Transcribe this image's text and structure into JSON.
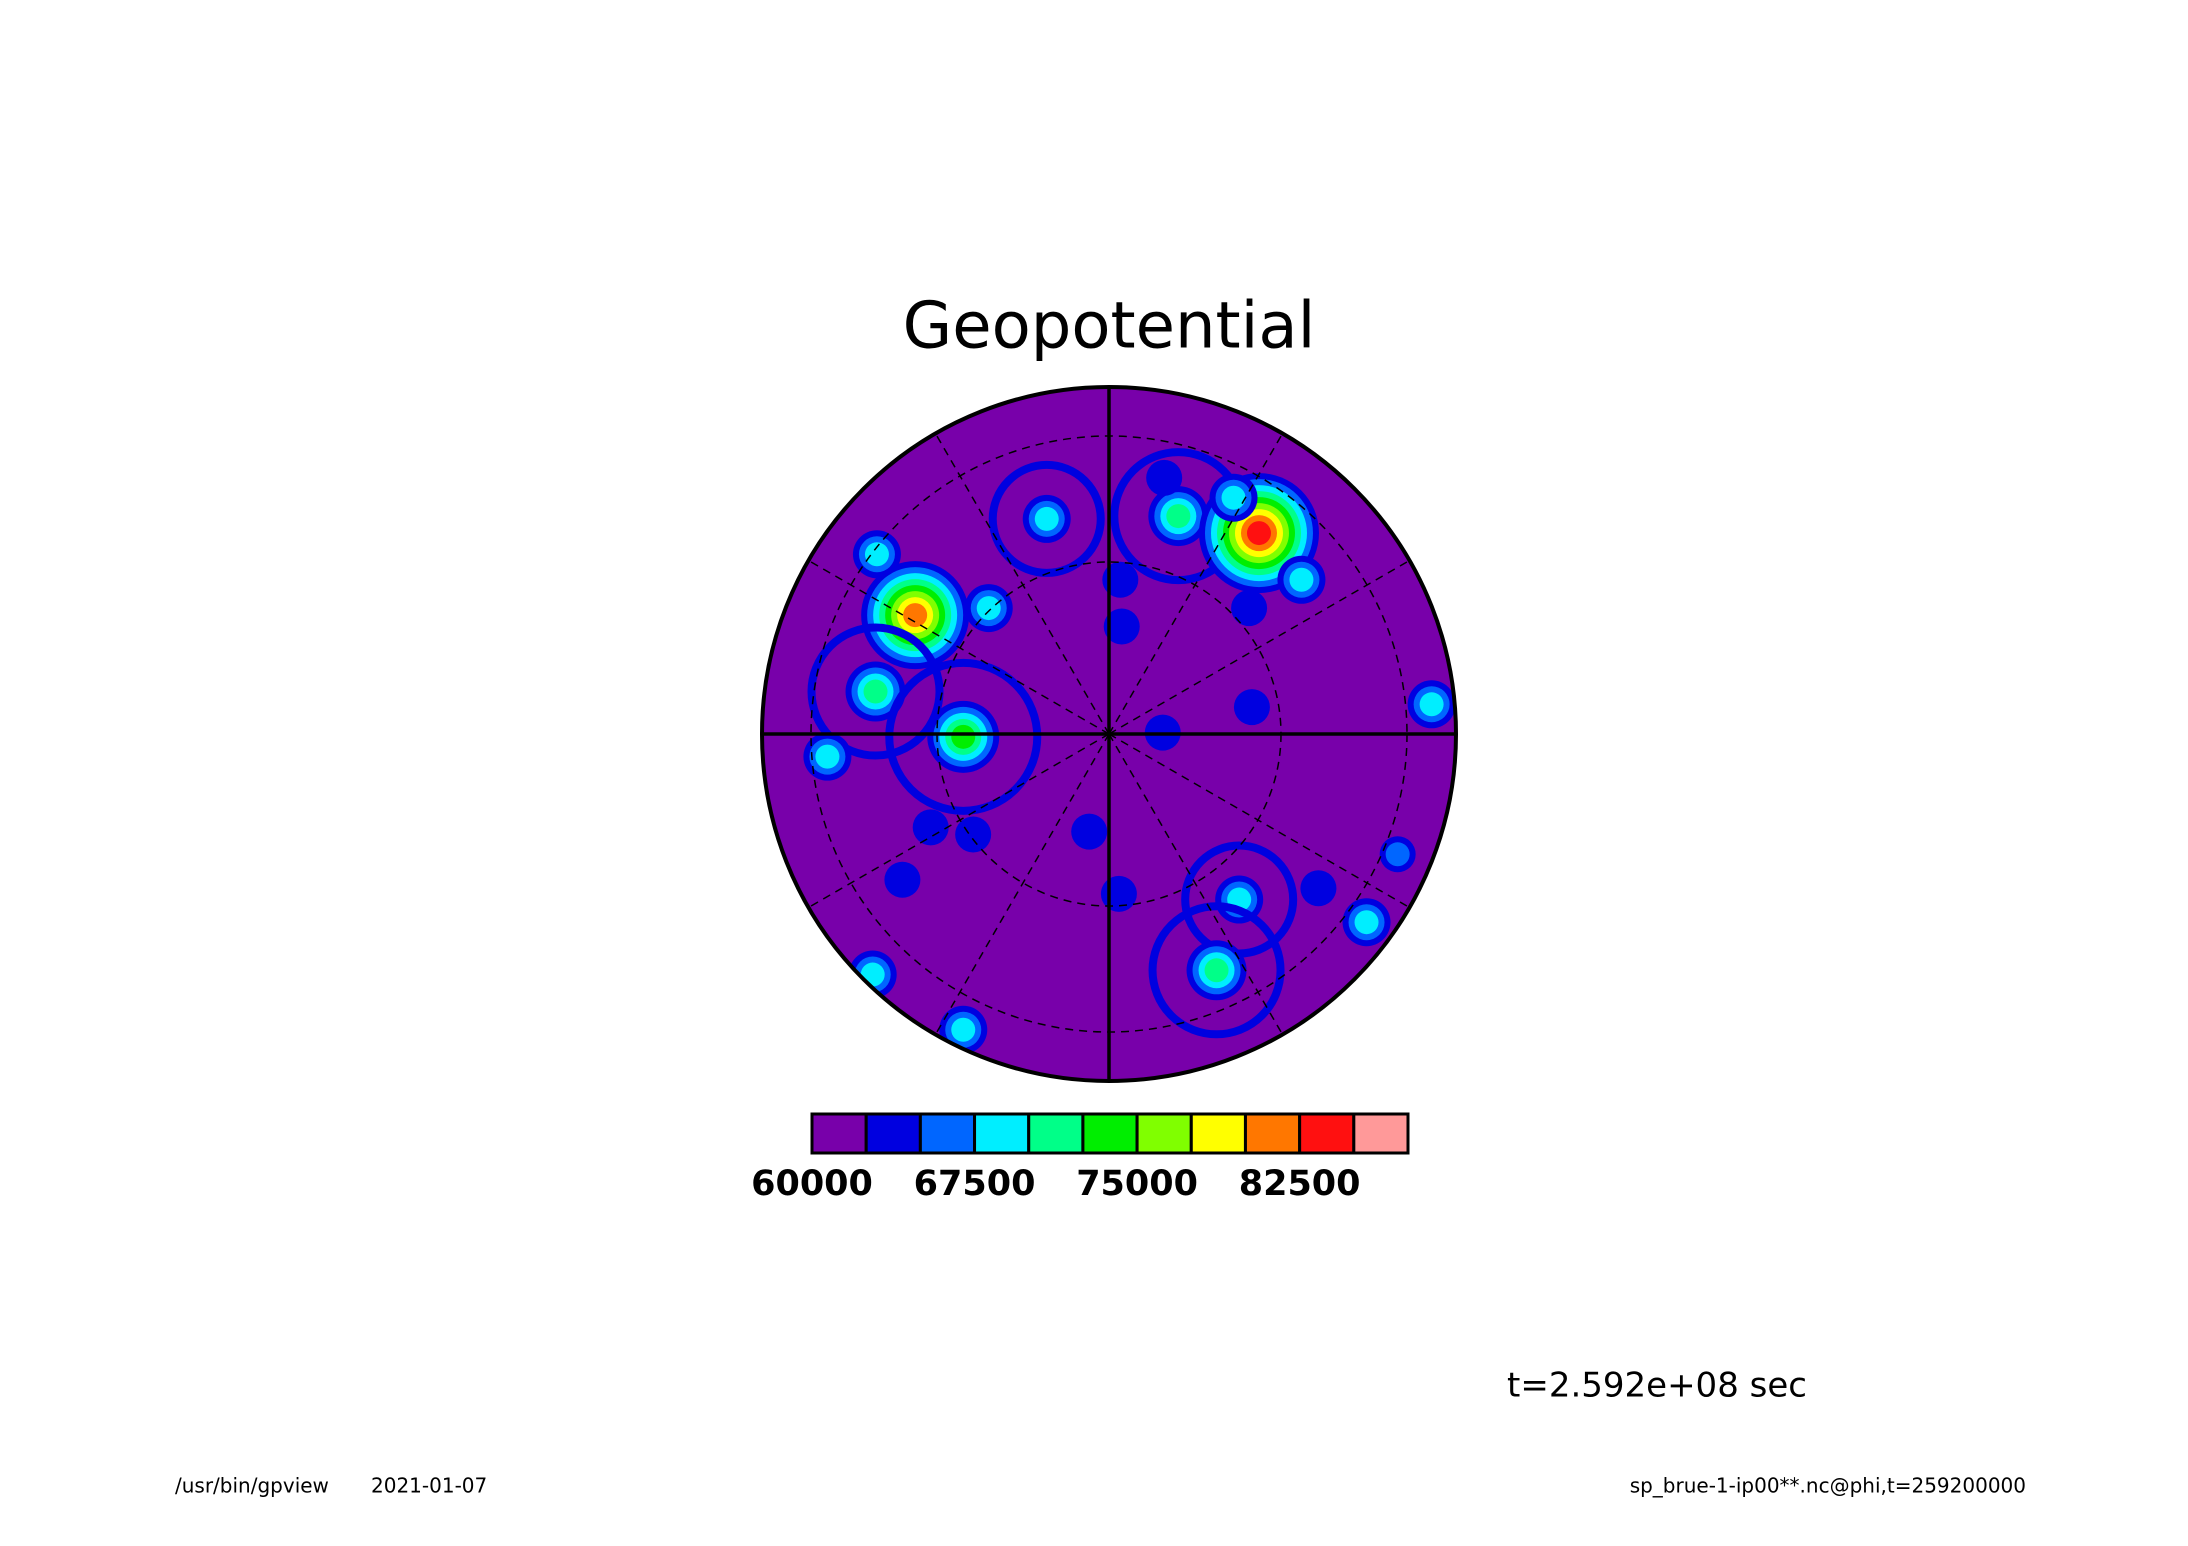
{
  "chart_data": {
    "type": "contour",
    "title": "Geopotential",
    "colorbar": {
      "levels": [
        60000,
        62500,
        65000,
        67500,
        70000,
        72500,
        75000,
        77500,
        80000,
        82500,
        85000,
        87500
      ],
      "colors": [
        "#7800aa",
        "#0000e0",
        "#0066ff",
        "#00eeff",
        "#00ff88",
        "#00ee00",
        "#80ff00",
        "#ffff00",
        "#ff7700",
        "#ff1010",
        "#ff9999"
      ],
      "xlim": [
        60000,
        87500
      ],
      "xticks": [
        60000,
        67500,
        75000,
        82500
      ]
    },
    "time_label": "t=2.592e+08 sec",
    "footer": {
      "program": "/usr/bin/gpview",
      "date": "2021-01-07",
      "source": "sp_brue-1-ip00**.nc@phi,t=259200000"
    }
  }
}
